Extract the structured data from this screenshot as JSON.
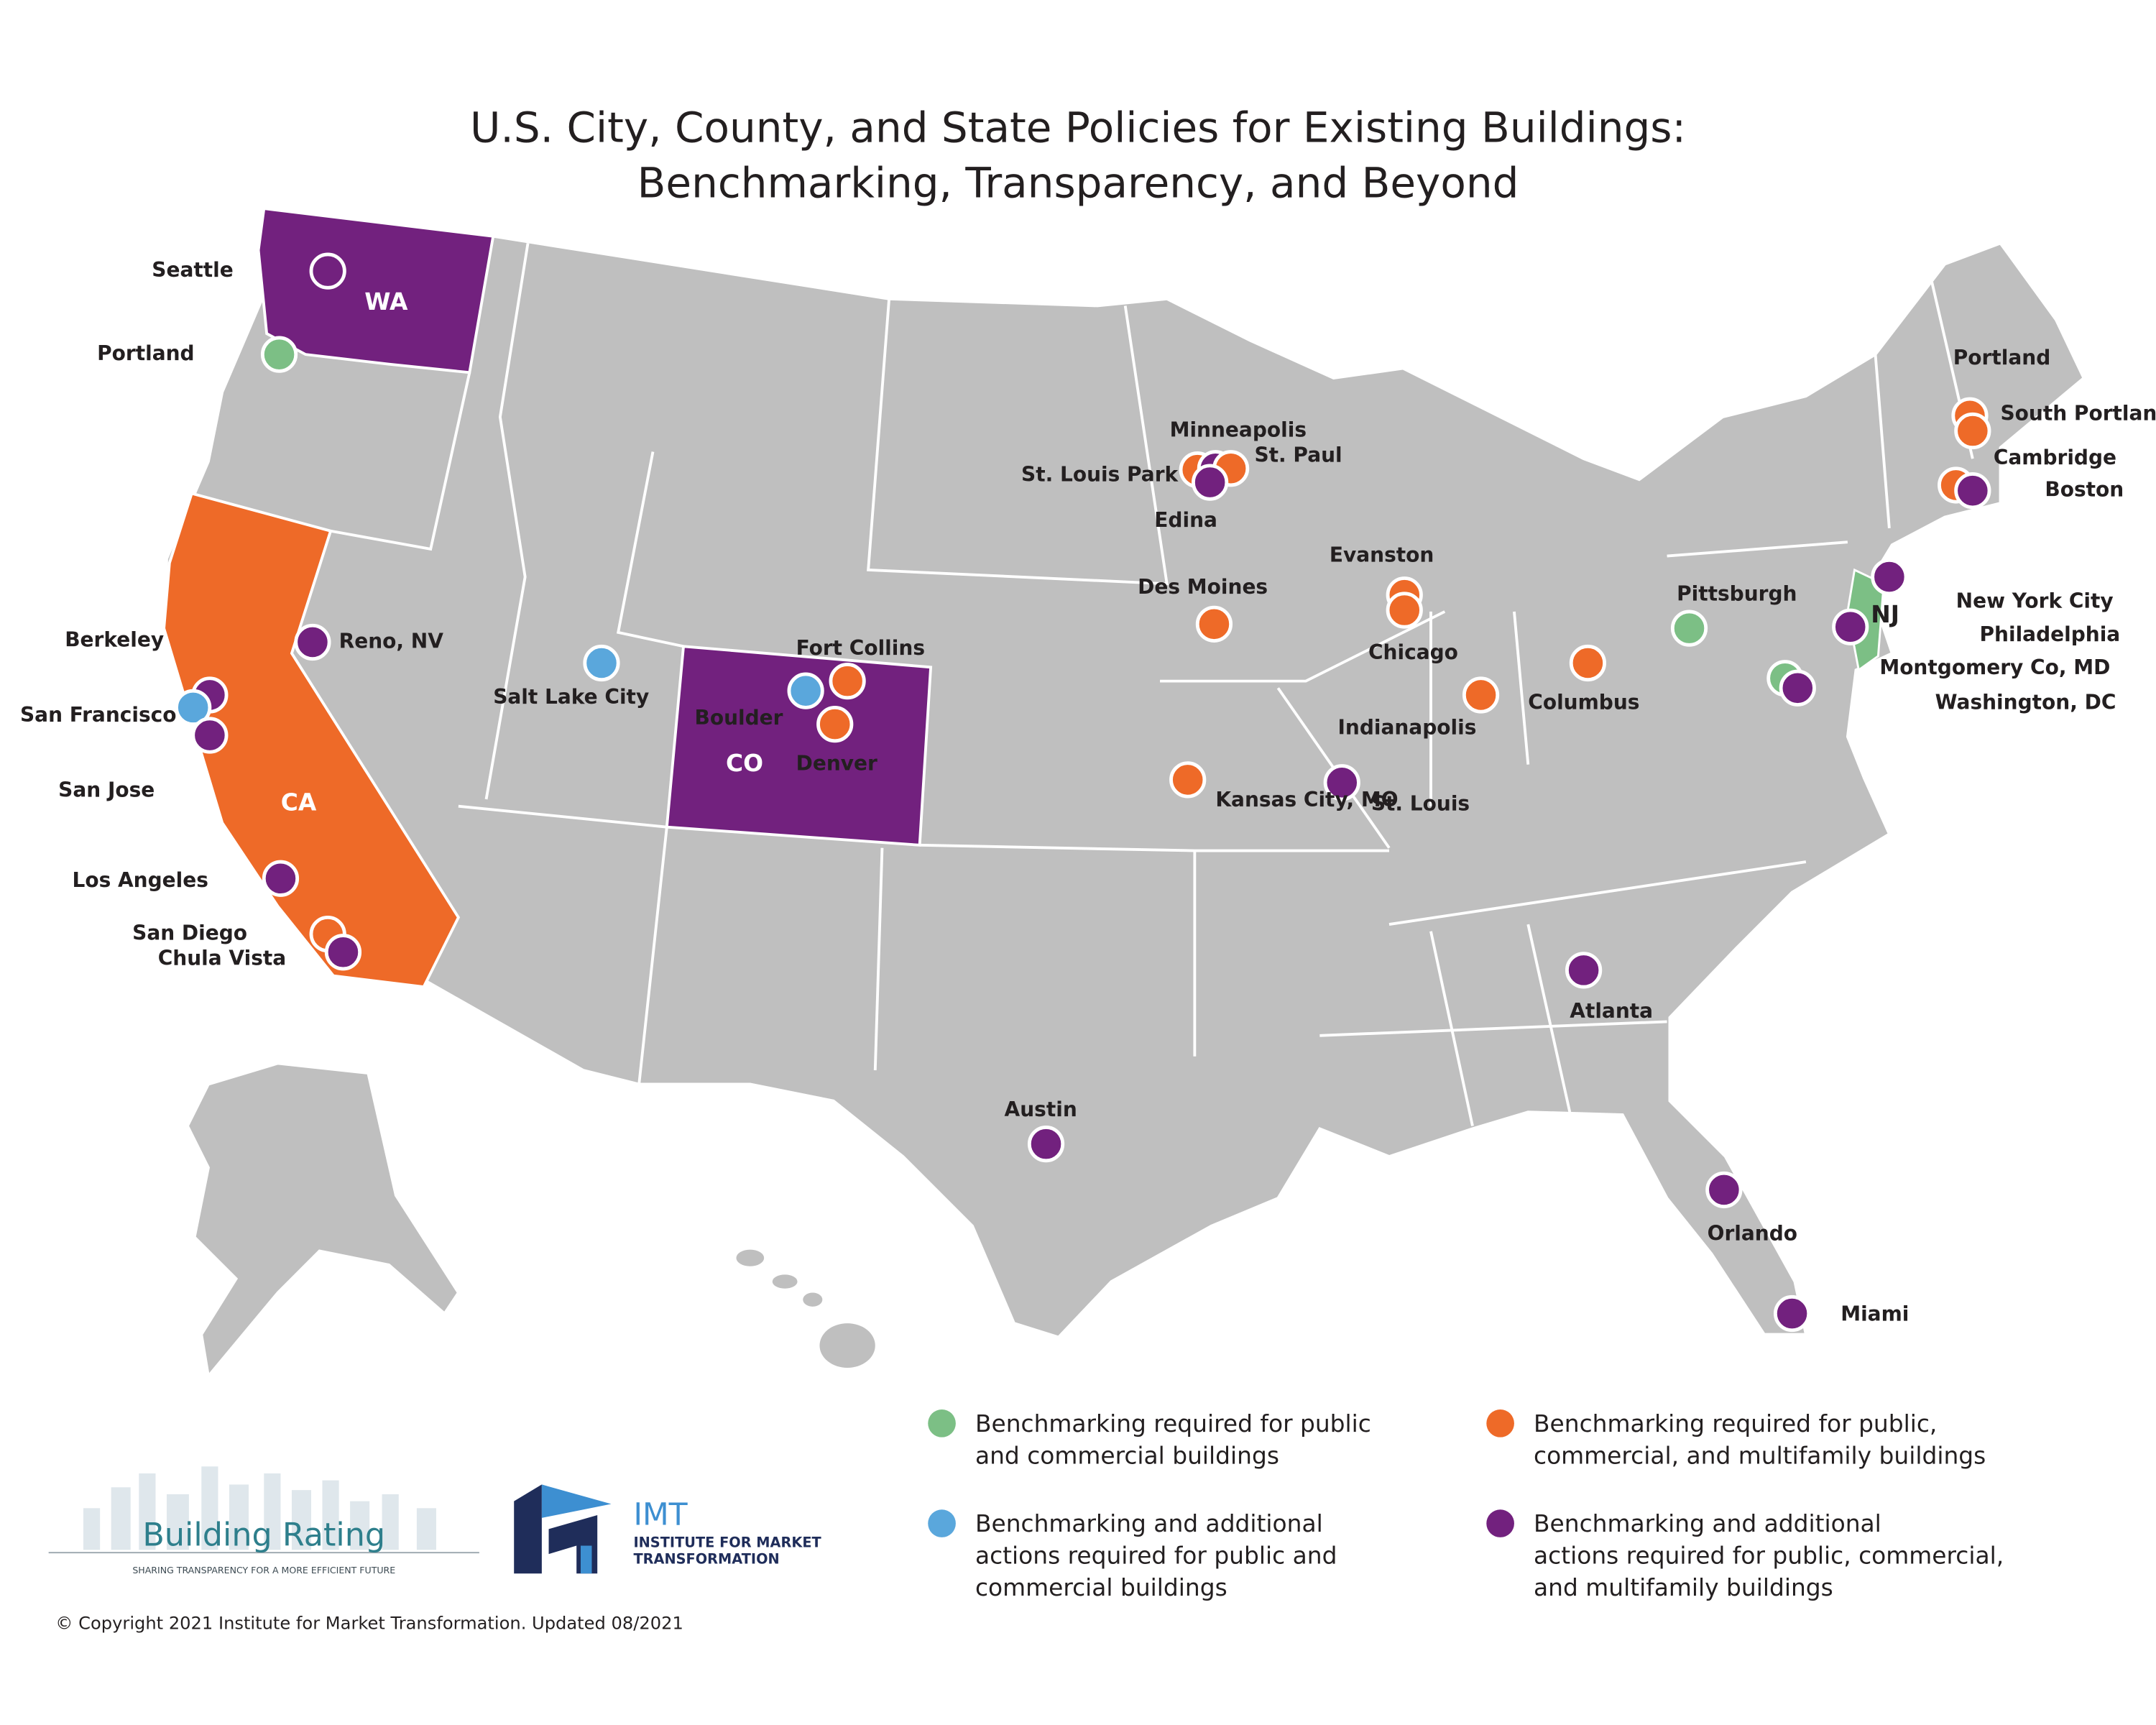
{
  "title": [
    "U.S. City, County, and State Policies for Existing Buildings:",
    "Benchmarking, Transparency, and Beyond"
  ],
  "legend": [
    {
      "color": "#7cbf85",
      "lines": [
        "Benchmarking required for public",
        "and commercial buildings"
      ]
    },
    {
      "color": "#5aa7dc",
      "lines": [
        "Benchmarking and additional",
        "actions required for public and",
        "commercial buildings"
      ]
    },
    {
      "color": "#ee6a28",
      "lines": [
        "Benchmarking required for public,",
        "commercial, and multifamily buildings"
      ]
    },
    {
      "color": "#72217e",
      "lines": [
        "Benchmarking and additional",
        "actions required for public, commercial,",
        "and multifamily buildings"
      ]
    }
  ],
  "state_labels": [
    "WA",
    "CA",
    "CO",
    "NJ"
  ],
  "cities": [
    {
      "label": "Seattle",
      "category": 3
    },
    {
      "label": "Portland",
      "category": 0
    },
    {
      "label": "Berkeley",
      "category": 3
    },
    {
      "label": "San Francisco",
      "category": 1
    },
    {
      "label": "San Jose",
      "category": 3
    },
    {
      "label": "Reno, NV",
      "category": 3
    },
    {
      "label": "Salt Lake City",
      "category": 1
    },
    {
      "label": "Fort Collins",
      "category": 2
    },
    {
      "label": "Boulder",
      "category": 1
    },
    {
      "label": "Denver",
      "category": 2
    },
    {
      "label": "Los Angeles",
      "category": 3
    },
    {
      "label": "San Diego",
      "category": 2
    },
    {
      "label": "Chula Vista",
      "category": 3
    },
    {
      "label": "St. Louis Park",
      "category": 2
    },
    {
      "label": "Minneapolis",
      "category": 3
    },
    {
      "label": "St. Paul",
      "category": 2
    },
    {
      "label": "Edina",
      "category": 3
    },
    {
      "label": "Des Moines",
      "category": 2
    },
    {
      "label": "Evanston",
      "category": 2
    },
    {
      "label": "Chicago",
      "category": 2
    },
    {
      "label": "Indianapolis",
      "category": 2
    },
    {
      "label": "Columbus",
      "category": 2
    },
    {
      "label": "Kansas City, MO",
      "category": 2
    },
    {
      "label": "St. Louis",
      "category": 3
    },
    {
      "label": "Pittsburgh",
      "category": 0
    },
    {
      "label": "New York City",
      "category": 3
    },
    {
      "label": "Philadelphia",
      "category": 3
    },
    {
      "label": "Montgomery Co, MD",
      "category": 0
    },
    {
      "label": "Washington, DC",
      "category": 3
    },
    {
      "label": "Portland",
      "category": 2
    },
    {
      "label": "South Portland",
      "category": 2
    },
    {
      "label": "Cambridge",
      "category": 2
    },
    {
      "label": "Boston",
      "category": 3
    },
    {
      "label": "Atlanta",
      "category": 3
    },
    {
      "label": "Austin",
      "category": 3
    },
    {
      "label": "Orlando",
      "category": 3
    },
    {
      "label": "Miami",
      "category": 3
    }
  ],
  "logos": {
    "building_rating": "Building Rating",
    "building_rating_tagline": "SHARING TRANSPARENCY FOR A MORE EFFICIENT FUTURE",
    "imt": "IMT",
    "imt_name": [
      "INSTITUTE FOR MARKET",
      "TRANSFORMATION"
    ]
  },
  "copyright": "© Copyright 2021 Institute for Market Transformation. Updated 08/2021"
}
